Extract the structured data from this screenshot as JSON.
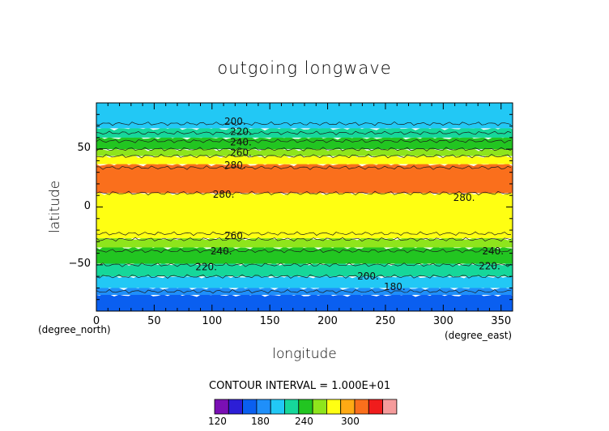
{
  "chart_data": {
    "type": "contour",
    "title": "outgoing longwave",
    "xlabel": "longitude",
    "ylabel": "latitude",
    "x_unit": "(degree_east)",
    "y_unit": "(degree_north)",
    "xlim": [
      0,
      360
    ],
    "ylim": [
      -90,
      90
    ],
    "x_ticks": [
      0,
      50,
      100,
      150,
      200,
      250,
      300,
      350
    ],
    "y_ticks": [
      -50,
      0,
      50
    ],
    "contour_interval_text": "CONTOUR INTERVAL = 1.000E+01",
    "bands": [
      {
        "lat": [
          -90,
          -76
        ],
        "level": 170,
        "color": "#0a5ff0"
      },
      {
        "lat": [
          -76,
          -70
        ],
        "level": 180,
        "color": "#1f8ffa"
      },
      {
        "lat": [
          -70,
          -60
        ],
        "level": 190,
        "color": "#22c8f5"
      },
      {
        "lat": [
          -60,
          -49
        ],
        "level": 210,
        "color": "#16d79a"
      },
      {
        "lat": [
          -49,
          -35
        ],
        "level": 230,
        "color": "#22c521"
      },
      {
        "lat": [
          -35,
          -27
        ],
        "level": 250,
        "color": "#8ee51c"
      },
      {
        "lat": [
          -27,
          12
        ],
        "level": 270,
        "color": "#ffff12"
      },
      {
        "lat": [
          12,
          37
        ],
        "level": 290,
        "color": "#fa6f1c"
      },
      {
        "lat": [
          37,
          44
        ],
        "level": 270,
        "color": "#ffff12"
      },
      {
        "lat": [
          44,
          50
        ],
        "level": 250,
        "color": "#8ee51c"
      },
      {
        "lat": [
          50,
          60
        ],
        "level": 230,
        "color": "#22c521"
      },
      {
        "lat": [
          60,
          68
        ],
        "level": 210,
        "color": "#16d79a"
      },
      {
        "lat": [
          68,
          88
        ],
        "level": 190,
        "color": "#22c8f5"
      }
    ],
    "contour_lines": [
      -73,
      -60,
      -50,
      -38,
      -28,
      -23,
      12,
      34,
      44,
      50,
      57,
      64,
      72
    ],
    "contour_labels": [
      {
        "text": "200.",
        "lon": 120,
        "lat": 74
      },
      {
        "text": "220.",
        "lon": 125,
        "lat": 65
      },
      {
        "text": "240.",
        "lon": 125,
        "lat": 56
      },
      {
        "text": "260.",
        "lon": 125,
        "lat": 47
      },
      {
        "text": "280.",
        "lon": 120,
        "lat": 36
      },
      {
        "text": "280.",
        "lon": 110,
        "lat": 11
      },
      {
        "text": "280.",
        "lon": 318,
        "lat": 8
      },
      {
        "text": "260.",
        "lon": 120,
        "lat": -25
      },
      {
        "text": "240.",
        "lon": 108,
        "lat": -38
      },
      {
        "text": "240.",
        "lon": 343,
        "lat": -38
      },
      {
        "text": "220.",
        "lon": 95,
        "lat": -52
      },
      {
        "text": "220.",
        "lon": 340,
        "lat": -51
      },
      {
        "text": "200.",
        "lon": 235,
        "lat": -60
      },
      {
        "text": "180.",
        "lon": 258,
        "lat": -69
      }
    ],
    "colorbar": {
      "colors": [
        "#7a0fb4",
        "#2c1ed6",
        "#0a5ff0",
        "#1f8ffa",
        "#22c8f5",
        "#16d79a",
        "#22c521",
        "#8ee51c",
        "#ffff12",
        "#ffaa14",
        "#fa6f1c",
        "#f01c1c",
        "#f59b9b"
      ],
      "tick_labels": [
        "120",
        "180",
        "240",
        "300"
      ]
    }
  }
}
